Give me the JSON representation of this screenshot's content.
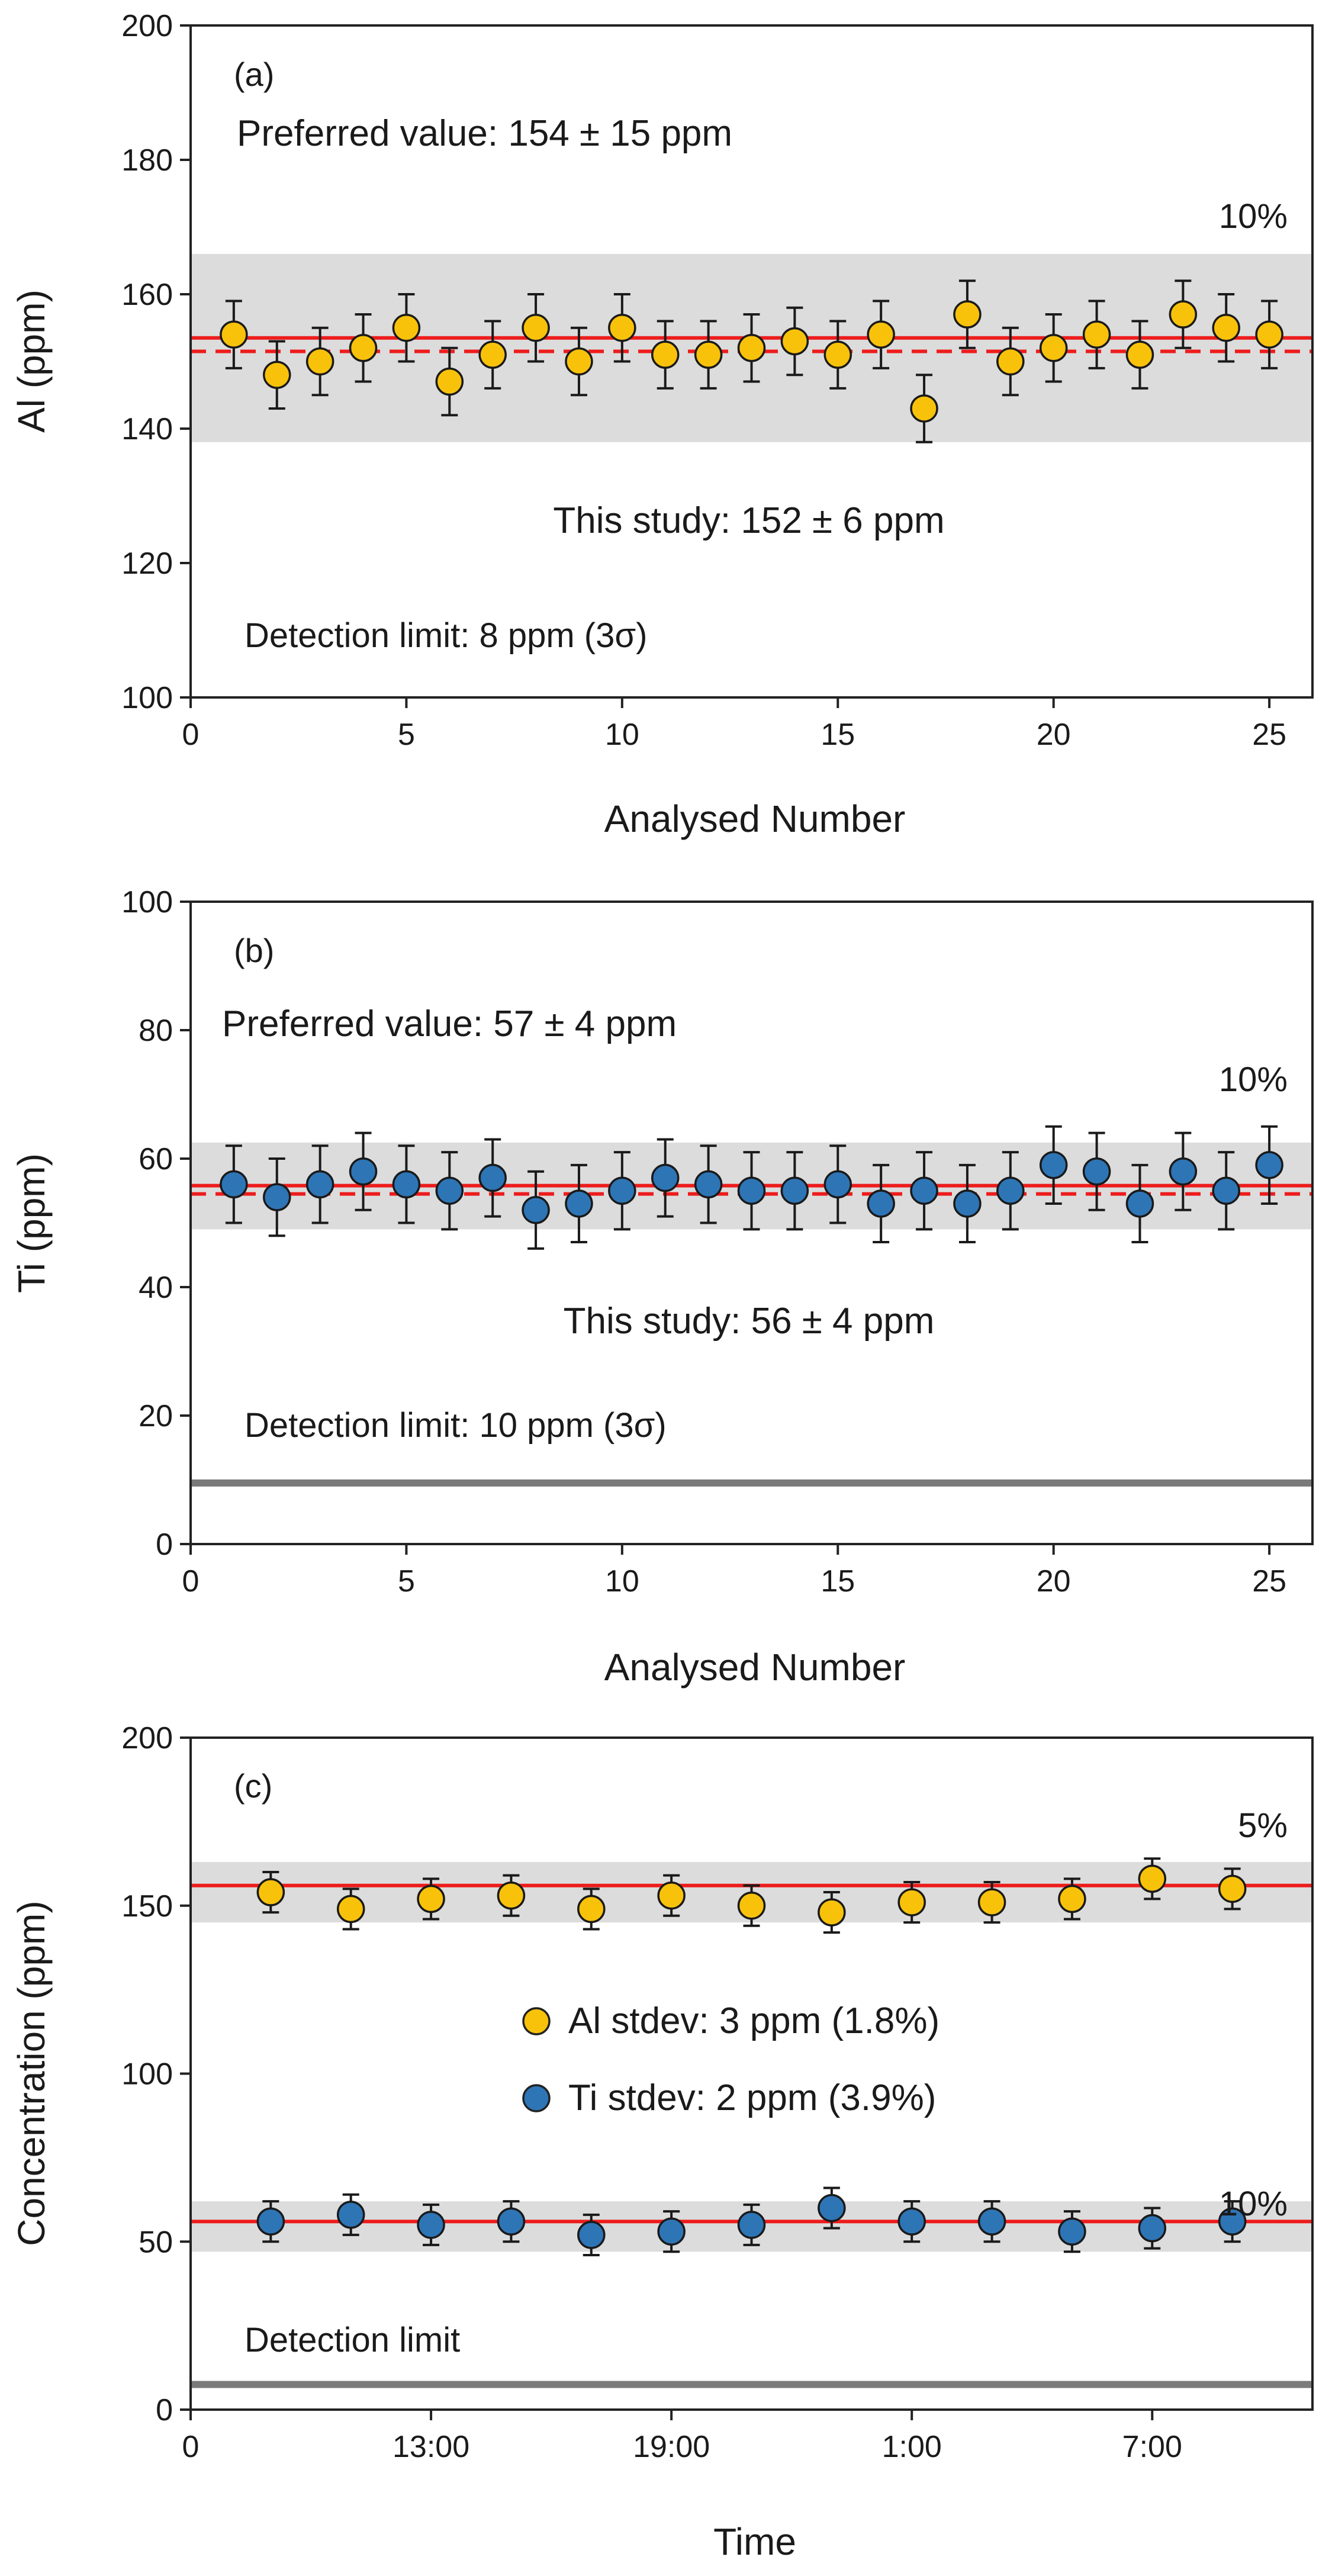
{
  "chart_data": [
    {
      "type": "scatter",
      "panel_label": "(a)",
      "xlabel": "Analysed Number",
      "ylabel": "Al (ppm)",
      "xlim": [
        0,
        26
      ],
      "ylim": [
        100,
        200
      ],
      "xticks": [
        0,
        5,
        10,
        15,
        20,
        25
      ],
      "yticks": [
        100,
        120,
        140,
        160,
        180,
        200
      ],
      "series": [
        {
          "name": "Al",
          "color": "#F9C20A",
          "x": [
            1,
            2,
            3,
            4,
            5,
            6,
            7,
            8,
            9,
            10,
            11,
            12,
            13,
            14,
            15,
            16,
            17,
            18,
            19,
            20,
            21,
            22,
            23,
            24,
            25
          ],
          "values": [
            154,
            148,
            150,
            152,
            155,
            147,
            151,
            155,
            150,
            155,
            151,
            151,
            152,
            153,
            151,
            154,
            143,
            157,
            150,
            152,
            154,
            151,
            157,
            155,
            154
          ],
          "errors": [
            5,
            5,
            5,
            5,
            5,
            5,
            5,
            5,
            5,
            5,
            5,
            5,
            5,
            5,
            5,
            5,
            5,
            5,
            5,
            5,
            5,
            5,
            5,
            5,
            5
          ]
        }
      ],
      "preferred_line": 153.5,
      "study_line": 151.5,
      "band": [
        138,
        166
      ],
      "band_label": "10%",
      "preferred_text": "Preferred value: 154 ± 15 ppm",
      "study_text": "This study: 152 ± 6 ppm",
      "detection_text": "Detection limit: 8 ppm (3σ)",
      "detection_line": null
    },
    {
      "type": "scatter",
      "panel_label": "(b)",
      "xlabel": "Analysed Number",
      "ylabel": "Ti (ppm)",
      "xlim": [
        0,
        26
      ],
      "ylim": [
        0,
        100
      ],
      "xticks": [
        0,
        5,
        10,
        15,
        20,
        25
      ],
      "yticks": [
        0,
        20,
        40,
        60,
        80,
        100
      ],
      "series": [
        {
          "name": "Ti",
          "color": "#2E75B6",
          "x": [
            1,
            2,
            3,
            4,
            5,
            6,
            7,
            8,
            9,
            10,
            11,
            12,
            13,
            14,
            15,
            16,
            17,
            18,
            19,
            20,
            21,
            22,
            23,
            24,
            25
          ],
          "values": [
            56,
            54,
            56,
            58,
            56,
            55,
            57,
            52,
            53,
            55,
            57,
            56,
            55,
            55,
            56,
            53,
            55,
            53,
            55,
            59,
            58,
            53,
            58,
            55,
            59
          ],
          "errors": [
            6,
            6,
            6,
            6,
            6,
            6,
            6,
            6,
            6,
            6,
            6,
            6,
            6,
            6,
            6,
            6,
            6,
            6,
            6,
            6,
            6,
            6,
            6,
            6,
            6
          ]
        }
      ],
      "preferred_line": 55.8,
      "study_line": 54.5,
      "band": [
        49,
        62.5
      ],
      "band_label": "10%",
      "preferred_text": "Preferred value: 57 ± 4 ppm",
      "study_text": "This study: 56 ± 4 ppm",
      "detection_text": "Detection limit: 10 ppm (3σ)",
      "detection_line": 9.5
    },
    {
      "type": "scatter",
      "panel_label": "(c)",
      "xlabel": "Time",
      "ylabel": "Concentration (ppm)",
      "xlim": [
        0,
        14
      ],
      "ylim": [
        0,
        200
      ],
      "xticks": [
        0,
        3,
        6,
        9,
        12
      ],
      "xticklabels": [
        "0",
        "13:00",
        "19:00",
        "1:00",
        "7:00"
      ],
      "yticks": [
        0,
        50,
        100,
        150,
        200
      ],
      "series": [
        {
          "name": "Al",
          "legend": "Al stdev: 3 ppm (1.8%)",
          "color": "#F9C20A",
          "x": [
            1,
            2,
            3,
            4,
            5,
            6,
            7,
            8,
            9,
            10,
            11,
            12,
            13
          ],
          "values": [
            154,
            149,
            152,
            153,
            149,
            153,
            150,
            148,
            151,
            151,
            152,
            158,
            155
          ],
          "errors": [
            6,
            6,
            6,
            6,
            6,
            6,
            6,
            6,
            6,
            6,
            6,
            6,
            6
          ]
        },
        {
          "name": "Ti",
          "legend": "Ti stdev: 2 ppm (3.9%)",
          "color": "#2E75B6",
          "x": [
            1,
            2,
            3,
            4,
            5,
            6,
            7,
            8,
            9,
            10,
            11,
            12,
            13
          ],
          "values": [
            56,
            58,
            55,
            56,
            52,
            53,
            55,
            60,
            56,
            56,
            53,
            54,
            56
          ],
          "errors": [
            6,
            6,
            6,
            6,
            6,
            6,
            6,
            6,
            6,
            6,
            6,
            6,
            6
          ]
        }
      ],
      "lines": [
        156,
        56
      ],
      "bands": [
        [
          145,
          163
        ],
        [
          47,
          62
        ]
      ],
      "band_labels": [
        "5%",
        "10%"
      ],
      "detection_text": "Detection limit",
      "detection_line": 7.5
    }
  ]
}
